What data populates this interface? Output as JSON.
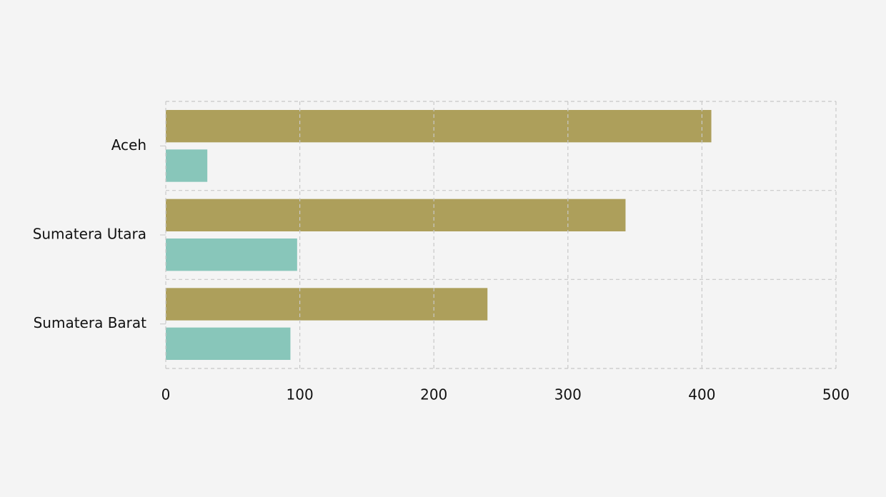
{
  "chart_data": {
    "type": "hbar",
    "categories": [
      "Aceh",
      "Sumatera Utara",
      "Sumatera Barat"
    ],
    "series": [
      {
        "color": "#ad9f5b",
        "values": [
          407,
          343,
          240
        ]
      },
      {
        "color": "#88c6ba",
        "values": [
          31,
          98,
          93
        ]
      }
    ],
    "xlim": [
      0,
      500
    ],
    "xticks": [
      0,
      100,
      200,
      300,
      400,
      500
    ],
    "grid": true
  }
}
